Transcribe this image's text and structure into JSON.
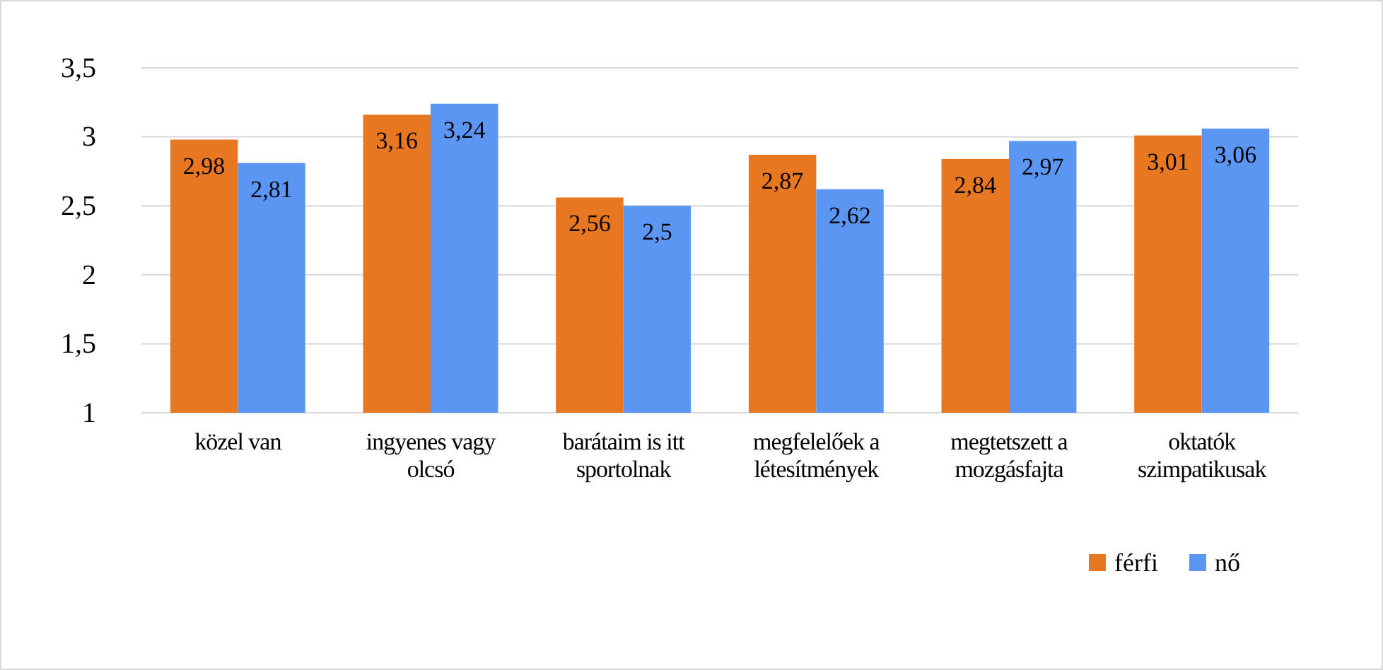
{
  "chart_data": {
    "type": "bar",
    "categories": [
      "közel van",
      "ingyenes vagy olcsó",
      "barátaim is itt sportolnak",
      "megfelelőek a létesítmények",
      "megtetszett a mozgásfajta",
      "oktatók szimpatikusak"
    ],
    "series": [
      {
        "name": "férfi",
        "color": "#e87722",
        "values": [
          2.98,
          3.16,
          2.56,
          2.87,
          2.84,
          3.01
        ],
        "value_labels": [
          "2,98",
          "3,16",
          "2,56",
          "2,87",
          "2,84",
          "3,01"
        ]
      },
      {
        "name": "nő",
        "color": "#5b96f5",
        "values": [
          2.81,
          3.24,
          2.5,
          2.62,
          2.97,
          3.06
        ],
        "value_labels": [
          "2,81",
          "3,24",
          "2,5",
          "2,62",
          "2,97",
          "3,06"
        ]
      }
    ],
    "ylim": [
      1,
      3.5
    ],
    "yticks": [
      1,
      {
        "value": 1.5,
        "label": "1,5"
      },
      2,
      {
        "value": 2.5,
        "label": "2,5"
      },
      3,
      {
        "value": 3.5,
        "label": "3,5"
      }
    ],
    "grid": "y",
    "legend": "bottom right"
  }
}
